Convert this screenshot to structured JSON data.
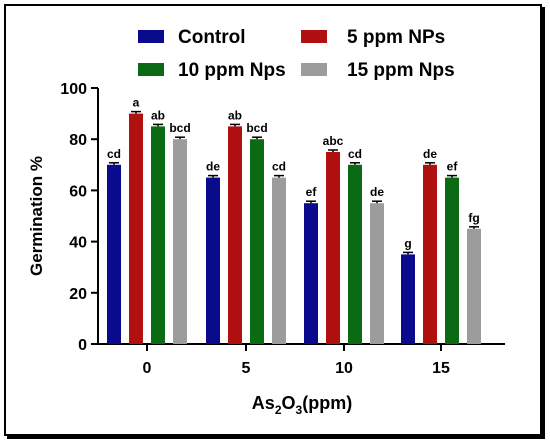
{
  "chart_data": {
    "type": "bar",
    "xlabel_main": "As",
    "xlabel_sub": "2",
    "xlabel_mid": "O",
    "xlabel_sub2": "3",
    "xlabel_tail": "(ppm)",
    "ylabel": "Germination %",
    "ylim": [
      0,
      100
    ],
    "yticks": [
      "0",
      "20",
      "40",
      "60",
      "80",
      "100"
    ],
    "categories": [
      "0",
      "5",
      "10",
      "15"
    ],
    "legend_placement": "top",
    "series": [
      {
        "name": "Control",
        "color": "#0a0a8c",
        "values": [
          70,
          65,
          55,
          35
        ],
        "letters": [
          "cd",
          "de",
          "ef",
          "g"
        ]
      },
      {
        "name": "5 ppm NPs",
        "color": "#b01010",
        "values": [
          90,
          85,
          75,
          70
        ],
        "letters": [
          "a",
          "ab",
          "abc",
          "de"
        ]
      },
      {
        "name": "10 ppm Nps",
        "color": "#0a6b14",
        "values": [
          85,
          80,
          70,
          65
        ],
        "letters": [
          "ab",
          "bcd",
          "cd",
          "ef"
        ]
      },
      {
        "name": "15 ppm Nps",
        "color": "#9c9c9c",
        "values": [
          80,
          65,
          55,
          45
        ],
        "letters": [
          "bcd",
          "cd",
          "de",
          "fg"
        ]
      }
    ]
  }
}
